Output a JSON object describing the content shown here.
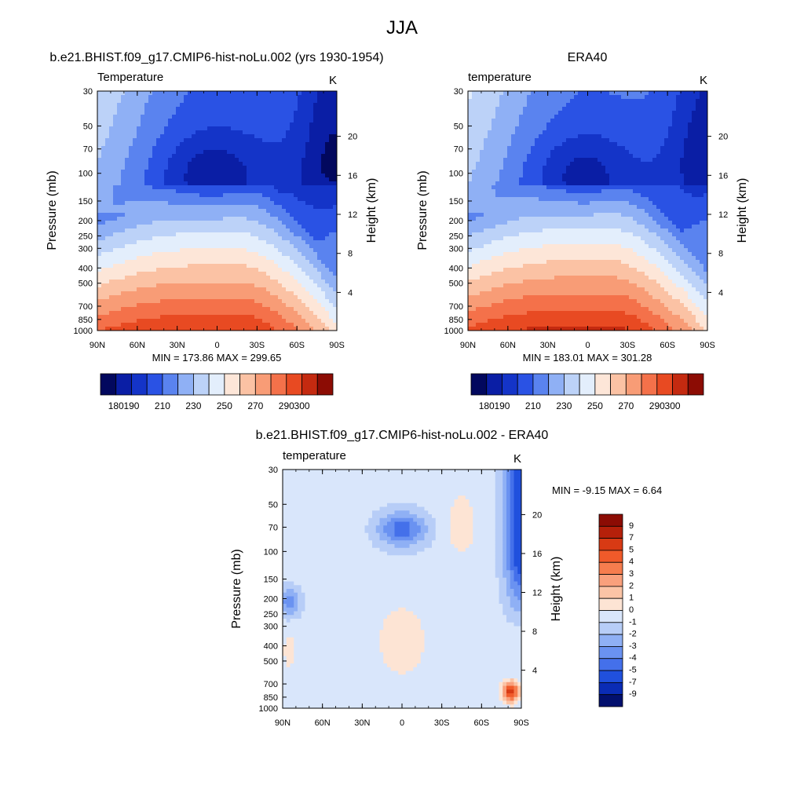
{
  "figure_title": "JJA",
  "chart_data": [
    {
      "type": "heatmap",
      "title": "b.e21.BHIST.f09_g17.CMIP6-hist-noLu.002 (yrs 1930-1954)",
      "subtitle_left": "Temperature",
      "subtitle_right": "K",
      "ylabel": "Pressure (mb)",
      "ylabel_right": "Height (km)",
      "x_ticks": [
        "90N",
        "60N",
        "30N",
        "0",
        "30S",
        "60S",
        "90S"
      ],
      "y_ticks": [
        "30",
        "50",
        "70",
        "100",
        "150",
        "200",
        "250",
        "300",
        "400",
        "500",
        "700",
        "850",
        "1000"
      ],
      "height_ticks": [
        "20",
        "16",
        "12",
        "8",
        "4"
      ],
      "stats": "MIN = 173.86  MAX = 299.65",
      "xlim": [
        "90N",
        "90S"
      ],
      "ylim": [
        1000,
        30
      ],
      "levels": [
        180,
        190,
        200,
        210,
        220,
        230,
        240,
        250,
        260,
        270,
        280,
        290,
        300
      ],
      "colorbar_labels": [
        "180",
        "190",
        "210",
        "230",
        "250",
        "270",
        "290",
        "300"
      ],
      "min": 173.86,
      "max": 299.65
    },
    {
      "type": "heatmap",
      "title": "ERA40",
      "subtitle_left": "temperature",
      "subtitle_right": "K",
      "ylabel": "Pressure (mb)",
      "ylabel_right": "Height (km)",
      "x_ticks": [
        "90N",
        "60N",
        "30N",
        "0",
        "30S",
        "60S",
        "90S"
      ],
      "y_ticks": [
        "30",
        "50",
        "70",
        "100",
        "150",
        "200",
        "250",
        "300",
        "400",
        "500",
        "700",
        "850",
        "1000"
      ],
      "height_ticks": [
        "20",
        "16",
        "12",
        "8",
        "4"
      ],
      "stats": "MIN = 183.01  MAX = 301.28",
      "xlim": [
        "90N",
        "90S"
      ],
      "ylim": [
        1000,
        30
      ],
      "levels": [
        180,
        190,
        200,
        210,
        220,
        230,
        240,
        250,
        260,
        270,
        280,
        290,
        300
      ],
      "colorbar_labels": [
        "180",
        "190",
        "210",
        "230",
        "250",
        "270",
        "290",
        "300"
      ],
      "min": 183.01,
      "max": 301.28
    },
    {
      "type": "heatmap",
      "title": "b.e21.BHIST.f09_g17.CMIP6-hist-noLu.002 - ERA40",
      "subtitle_left": "temperature",
      "subtitle_right": "K",
      "ylabel": "Pressure (mb)",
      "ylabel_right": "Height (km)",
      "x_ticks": [
        "90N",
        "60N",
        "30N",
        "0",
        "30S",
        "60S",
        "90S"
      ],
      "y_ticks": [
        "30",
        "50",
        "70",
        "100",
        "150",
        "200",
        "250",
        "300",
        "400",
        "500",
        "700",
        "850",
        "1000"
      ],
      "height_ticks": [
        "20",
        "16",
        "12",
        "8",
        "4"
      ],
      "stats": "MIN =  -9.15  MAX =   6.64",
      "xlim": [
        "90N",
        "90S"
      ],
      "ylim": [
        1000,
        30
      ],
      "levels": [
        -9,
        -7,
        -5,
        -4,
        -3,
        -2,
        -1,
        0,
        1,
        2,
        3,
        4,
        5,
        7,
        9
      ],
      "colorbar_labels": [
        "9",
        "7",
        "5",
        "4",
        "3",
        "2",
        "1",
        "0",
        "-1",
        "-2",
        "-3",
        "-4",
        "-5",
        "-7",
        "-9"
      ],
      "min": -9.15,
      "max": 6.64
    }
  ],
  "colors": {
    "temperature_palette": [
      "#02085e",
      "#0a1ea5",
      "#1434c8",
      "#2a52e4",
      "#5a83ef",
      "#8fb0f5",
      "#bcd2f8",
      "#e3eefc",
      "#fde6d8",
      "#fbc2a4",
      "#f89c76",
      "#f4714a",
      "#e84a22",
      "#c42a10",
      "#8c0c04"
    ],
    "difference_palette": [
      "#8c0c04",
      "#b5200a",
      "#d83a14",
      "#f05a2a",
      "#f67d4e",
      "#f9a07c",
      "#fbc4a6",
      "#fde4d4",
      "#d9e6fb",
      "#b7cdf7",
      "#8fb0f5",
      "#6a92f1",
      "#4470ea",
      "#2050dd",
      "#0a2cb5",
      "#02106e"
    ]
  }
}
